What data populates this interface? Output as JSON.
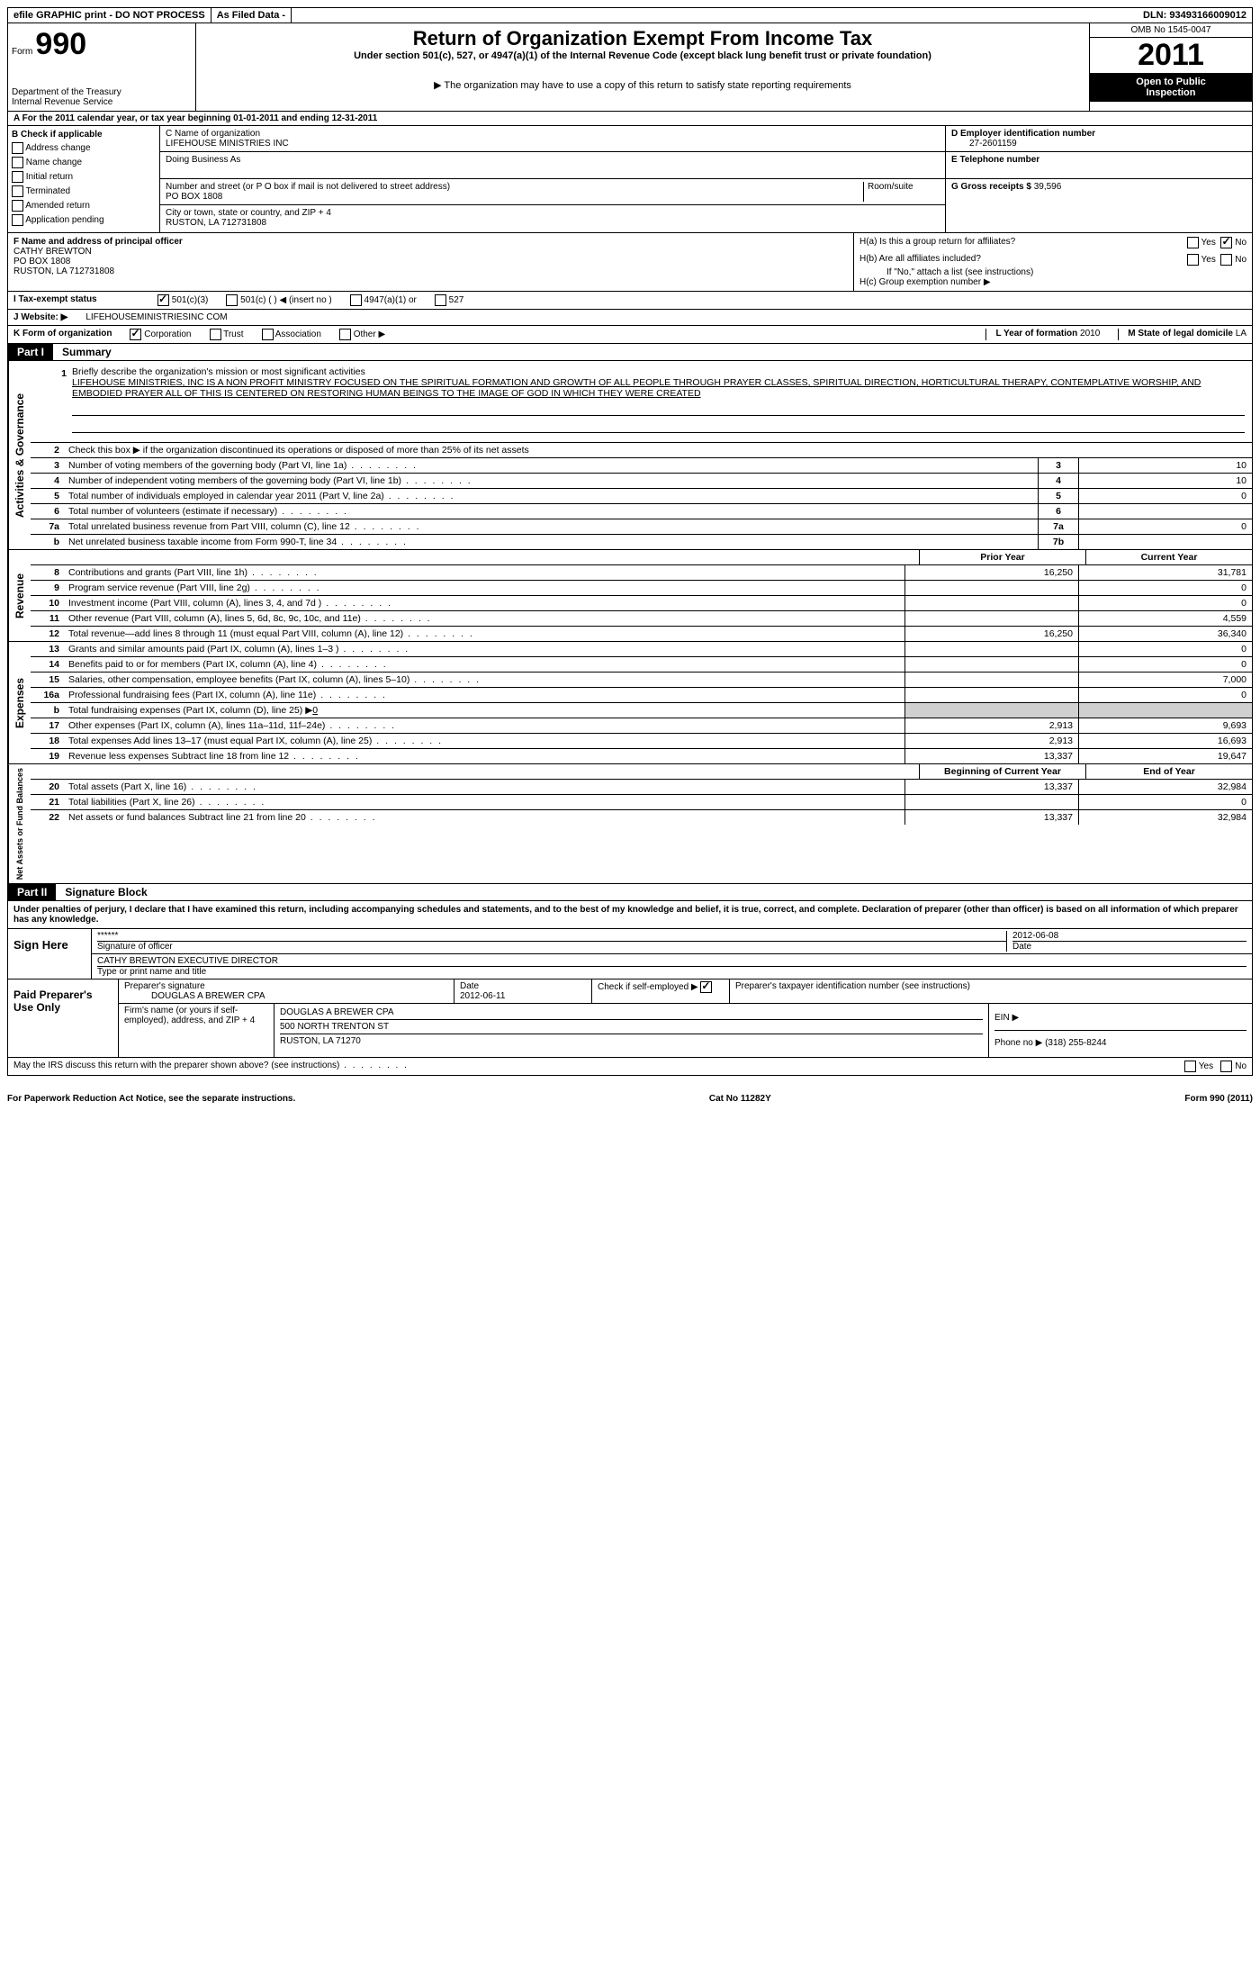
{
  "topbar": {
    "efile": "efile GRAPHIC print - DO NOT PROCESS",
    "asfiled": "As Filed Data -",
    "dln_label": "DLN:",
    "dln": "93493166009012"
  },
  "header": {
    "form_word": "Form",
    "form_num": "990",
    "dept1": "Department of the Treasury",
    "dept2": "Internal Revenue Service",
    "title": "Return of Organization Exempt From Income Tax",
    "subtitle": "Under section 501(c), 527, or 4947(a)(1) of the Internal Revenue Code (except black lung benefit trust or private foundation)",
    "note": "▶ The organization may have to use a copy of this return to satisfy state reporting requirements",
    "omb": "OMB No 1545-0047",
    "year": "2011",
    "open1": "Open to Public",
    "open2": "Inspection"
  },
  "rowA": "A  For the 2011 calendar year, or tax year beginning 01-01-2011    and ending 12-31-2011",
  "colB": {
    "header": "B  Check if applicable",
    "opts": [
      "Address change",
      "Name change",
      "Initial return",
      "Terminated",
      "Amended return",
      "Application pending"
    ]
  },
  "colC": {
    "name_label": "C Name of organization",
    "name": "LIFEHOUSE MINISTRIES INC",
    "dba_label": "Doing Business As",
    "addr_label": "Number and street (or P O  box if mail is not delivered to street address)",
    "room_label": "Room/suite",
    "addr": "PO BOX 1808",
    "city_label": "City or town, state or country, and ZIP + 4",
    "city": "RUSTON, LA  712731808"
  },
  "colD": {
    "d_label": "D Employer identification number",
    "ein": "27-2601159",
    "e_label": "E Telephone number",
    "g_label": "G Gross receipts $",
    "g_val": "39,596"
  },
  "officer": {
    "f_label": "F   Name and address of principal officer",
    "name": "CATHY BREWTON",
    "addr": "PO BOX 1808",
    "city": "RUSTON, LA  712731808",
    "ha": "H(a)  Is this a group return for affiliates?",
    "hb": "H(b)  Are all affiliates included?",
    "hb_note": "If \"No,\" attach a list  (see instructions)",
    "hc": "H(c)   Group exemption number ▶"
  },
  "rowI": {
    "label": "I   Tax-exempt status",
    "opts": [
      "501(c)(3)",
      "501(c) (  ) ◀ (insert no )",
      "4947(a)(1) or",
      "527"
    ]
  },
  "rowJ": {
    "label": "J   Website: ▶",
    "val": "LIFEHOUSEMINISTRIESINC COM"
  },
  "rowK": {
    "label": "K Form of organization",
    "opts": [
      "Corporation",
      "Trust",
      "Association",
      "Other ▶"
    ],
    "l_label": "L Year of formation",
    "l_val": "2010",
    "m_label": "M State of legal domicile",
    "m_val": "LA"
  },
  "partI": {
    "label": "Part I",
    "title": "Summary"
  },
  "mission": {
    "num": "1",
    "label": "Briefly describe the organization's mission or most significant activities",
    "text": "LIFEHOUSE MINISTRIES, INC  IS A NON PROFIT MINISTRY FOCUSED ON THE SPIRITUAL FORMATION AND GROWTH OF ALL PEOPLE THROUGH PRAYER CLASSES, SPIRITUAL DIRECTION, HORTICULTURAL THERAPY, CONTEMPLATIVE WORSHIP, AND EMBODIED PRAYER  ALL OF THIS IS CENTERED ON RESTORING HUMAN BEINGS TO THE IMAGE OF GOD IN WHICH THEY WERE CREATED"
  },
  "governance": {
    "vlabel": "Activities & Governance",
    "line2": "Check this box ▶     if the organization discontinued its operations or disposed of more than 25% of its net assets",
    "lines": [
      {
        "n": "3",
        "t": "Number of voting members of the governing body (Part VI, line 1a)",
        "box": "3",
        "v": "10"
      },
      {
        "n": "4",
        "t": "Number of independent voting members of the governing body (Part VI, line 1b)",
        "box": "4",
        "v": "10"
      },
      {
        "n": "5",
        "t": "Total number of individuals employed in calendar year 2011 (Part V, line 2a)",
        "box": "5",
        "v": "0"
      },
      {
        "n": "6",
        "t": "Total number of volunteers (estimate if necessary)",
        "box": "6",
        "v": ""
      },
      {
        "n": "7a",
        "t": "Total unrelated business revenue from Part VIII, column (C), line 12",
        "box": "7a",
        "v": "0"
      },
      {
        "n": "b",
        "t": "Net unrelated business taxable income from Form 990-T, line 34",
        "box": "7b",
        "v": ""
      }
    ]
  },
  "colheaders": {
    "prior": "Prior Year",
    "current": "Current Year"
  },
  "revenue": {
    "vlabel": "Revenue",
    "lines": [
      {
        "n": "8",
        "t": "Contributions and grants (Part VIII, line 1h)",
        "p": "16,250",
        "c": "31,781"
      },
      {
        "n": "9",
        "t": "Program service revenue (Part VIII, line 2g)",
        "p": "",
        "c": "0"
      },
      {
        "n": "10",
        "t": "Investment income (Part VIII, column (A), lines 3, 4, and 7d )",
        "p": "",
        "c": "0"
      },
      {
        "n": "11",
        "t": "Other revenue (Part VIII, column (A), lines 5, 6d, 8c, 9c, 10c, and 11e)",
        "p": "",
        "c": "4,559"
      },
      {
        "n": "12",
        "t": "Total revenue—add lines 8 through 11 (must equal Part VIII, column (A), line 12)",
        "p": "16,250",
        "c": "36,340"
      }
    ]
  },
  "expenses": {
    "vlabel": "Expenses",
    "lines": [
      {
        "n": "13",
        "t": "Grants and similar amounts paid (Part IX, column (A), lines 1–3 )",
        "p": "",
        "c": "0"
      },
      {
        "n": "14",
        "t": "Benefits paid to or for members (Part IX, column (A), line 4)",
        "p": "",
        "c": "0"
      },
      {
        "n": "15",
        "t": "Salaries, other compensation, employee benefits (Part IX, column (A), lines 5–10)",
        "p": "",
        "c": "7,000"
      },
      {
        "n": "16a",
        "t": "Professional fundraising fees (Part IX, column (A), line 11e)",
        "p": "",
        "c": "0"
      },
      {
        "n": "b",
        "t": "Total fundraising expenses (Part IX, column (D), line 25) ▶",
        "p": "grey",
        "c": "grey",
        "u": "0"
      },
      {
        "n": "17",
        "t": "Other expenses (Part IX, column (A), lines 11a–11d, 11f–24e)",
        "p": "2,913",
        "c": "9,693"
      },
      {
        "n": "18",
        "t": "Total expenses  Add lines 13–17 (must equal Part IX, column (A), line 25)",
        "p": "2,913",
        "c": "16,693"
      },
      {
        "n": "19",
        "t": "Revenue less expenses  Subtract line 18 from line 12",
        "p": "13,337",
        "c": "19,647"
      }
    ]
  },
  "netassets": {
    "vlabel": "Net Assets or Fund Balances",
    "header_a": "Beginning of Current Year",
    "header_b": "End of Year",
    "lines": [
      {
        "n": "20",
        "t": "Total assets (Part X, line 16)",
        "p": "13,337",
        "c": "32,984"
      },
      {
        "n": "21",
        "t": "Total liabilities (Part X, line 26)",
        "p": "",
        "c": "0"
      },
      {
        "n": "22",
        "t": "Net assets or fund balances  Subtract line 21 from line 20",
        "p": "13,337",
        "c": "32,984"
      }
    ]
  },
  "partII": {
    "label": "Part II",
    "title": "Signature Block"
  },
  "perjury": "Under penalties of perjury, I declare that I have examined this return, including accompanying schedules and statements, and to the best of my knowledge and belief, it is true, correct, and complete. Declaration of preparer (other than officer) is based on all information of which preparer has any knowledge.",
  "sign": {
    "left": "Sign Here",
    "stars": "******",
    "sig_label": "Signature of officer",
    "date": "2012-06-08",
    "date_label": "Date",
    "name": "CATHY BREWTON EXECUTIVE DIRECTOR",
    "name_label": "Type or print name and title"
  },
  "prep": {
    "left": "Paid Preparer's Use Only",
    "sig_label": "Preparer's signature",
    "sig": "DOUGLAS A BREWER CPA",
    "date_label": "Date",
    "date": "2012-06-11",
    "check_label": "Check if self-employed ▶",
    "ptin_label": "Preparer's taxpayer identification number (see instructions)",
    "firm_label": "Firm's name (or yours if self-employed), address, and ZIP + 4",
    "firm": "DOUGLAS A BREWER CPA",
    "firm_addr": "500 NORTH TRENTON ST",
    "firm_city": "RUSTON, LA  71270",
    "ein_label": "EIN ▶",
    "phone_label": "Phone no  ▶",
    "phone": "(318) 255-8244"
  },
  "discuss": "May the IRS discuss this return with the preparer shown above? (see instructions)",
  "footer": {
    "left": "For Paperwork Reduction Act Notice, see the separate instructions.",
    "mid": "Cat No  11282Y",
    "right": "Form 990 (2011)"
  }
}
